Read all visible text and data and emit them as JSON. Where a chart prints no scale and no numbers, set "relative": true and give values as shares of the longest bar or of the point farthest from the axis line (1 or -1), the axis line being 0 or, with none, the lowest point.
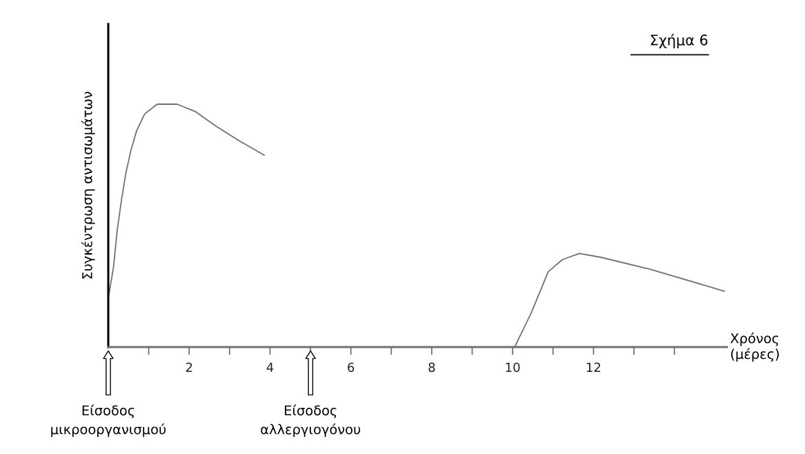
{
  "chart_data": {
    "type": "line",
    "title": "Σχήμα 6",
    "ylabel": "Συγκέντρωση αντισωμάτων",
    "xlabel": "Χρόνος\n(μέρες)",
    "relative": true,
    "grid": false,
    "legend": false,
    "xlim": [
      0,
      15.3
    ],
    "xticks": [
      {
        "value": 1,
        "label": null
      },
      2,
      {
        "value": 3,
        "label": null
      },
      4,
      {
        "value": 5,
        "label": null
      },
      6,
      {
        "value": 7,
        "label": null
      },
      8,
      {
        "value": 9,
        "label": null
      },
      10,
      {
        "value": 11,
        "label": null
      },
      12,
      {
        "value": 13,
        "label": null
      },
      {
        "value": 14,
        "label": null
      }
    ],
    "series": [
      {
        "color": "#707070",
        "x": [
          0,
          0.13,
          0.22,
          0.33,
          0.44,
          0.56,
          0.7,
          0.9,
          1.21,
          1.7,
          2.15,
          2.66,
          3.23,
          3.86
        ],
        "values": [
          0.2,
          0.33,
          0.48,
          0.61,
          0.72,
          0.81,
          0.89,
          0.96,
          1.0,
          1.0,
          0.97,
          0.91,
          0.85,
          0.79
        ]
      },
      {
        "color": "#707070",
        "x": [
          10.05,
          10.46,
          10.88,
          11.23,
          11.65,
          12.17,
          13.41,
          15.24
        ],
        "values": [
          0,
          0.14,
          0.31,
          0.36,
          0.385,
          0.37,
          0.32,
          0.23
        ]
      }
    ],
    "annotations": [
      "Είσοδος\nμικροοργανισμού",
      "Είσοδος\nαλλεργιογόνου"
    ]
  }
}
